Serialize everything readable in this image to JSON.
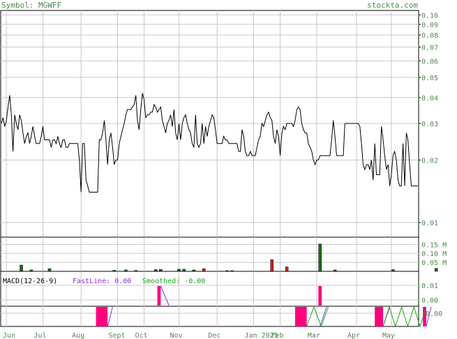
{
  "header": {
    "symbol_label": "Symbol: MGWFF",
    "site": "stockta.com"
  },
  "colors": {
    "text": "#4c8a4c",
    "grid": "#c8c8c8",
    "price_line": "#000000",
    "volume_up": "#1a6e1a",
    "volume_down": "#d02020",
    "macd_bar": "#ff007f",
    "macd_fast": "#8a2be2",
    "macd_smoothed": "#20a020"
  },
  "chart_data": [
    {
      "type": "line",
      "panel": "price",
      "y_scale": "log",
      "ylim": [
        0.0085,
        0.105
      ],
      "yticks": [
        "0.10",
        "0.09",
        "0.08",
        "0.07",
        "0.06",
        "0.05",
        "0.04",
        "0.03",
        "0.02",
        "0.01"
      ],
      "ytick_values": [
        0.1,
        0.09,
        0.08,
        0.07,
        0.06,
        0.05,
        0.04,
        0.03,
        0.02,
        0.01
      ],
      "grid": true,
      "x_labels": [
        "Jun",
        "Jul",
        "Aug",
        "Sept",
        "Oct",
        "Nov",
        "Dec",
        "Jan 2025",
        "Feb",
        "Mar",
        "Apr",
        "May"
      ],
      "x_label_index": [
        3,
        25,
        48,
        70,
        86,
        107,
        130,
        152,
        168,
        190,
        214,
        235
      ],
      "values": [
        0.03,
        0.032,
        0.029,
        0.031,
        0.036,
        0.041,
        0.033,
        0.022,
        0.033,
        0.03,
        0.028,
        0.033,
        0.031,
        0.027,
        0.024,
        0.026,
        0.027,
        0.024,
        0.026,
        0.029,
        0.026,
        0.024,
        0.024,
        0.024,
        0.026,
        0.029,
        0.025,
        0.025,
        0.025,
        0.025,
        0.023,
        0.025,
        0.025,
        0.024,
        0.026,
        0.024,
        0.023,
        0.025,
        0.025,
        0.023,
        0.023,
        0.024,
        0.024,
        0.024,
        0.024,
        0.024,
        0.024,
        0.02,
        0.014,
        0.024,
        0.024,
        0.016,
        0.015,
        0.014,
        0.014,
        0.014,
        0.014,
        0.014,
        0.014,
        0.025,
        0.025,
        0.027,
        0.031,
        0.025,
        0.019,
        0.025,
        0.027,
        0.023,
        0.019,
        0.02,
        0.02,
        0.024,
        0.026,
        0.028,
        0.03,
        0.033,
        0.035,
        0.035,
        0.035,
        0.036,
        0.037,
        0.041,
        0.031,
        0.028,
        0.035,
        0.042,
        0.039,
        0.032,
        0.033,
        0.033,
        0.034,
        0.034,
        0.037,
        0.036,
        0.034,
        0.035,
        0.036,
        0.031,
        0.029,
        0.027,
        0.03,
        0.031,
        0.033,
        0.029,
        0.035,
        0.027,
        0.025,
        0.03,
        0.025,
        0.03,
        0.032,
        0.033,
        0.03,
        0.028,
        0.027,
        0.024,
        0.023,
        0.033,
        0.024,
        0.023,
        0.024,
        0.03,
        0.024,
        0.029,
        0.026,
        0.029,
        0.031,
        0.033,
        0.032,
        0.028,
        0.024,
        0.024,
        0.024,
        0.024,
        0.026,
        0.025,
        0.025,
        0.024,
        0.024,
        0.024,
        0.024,
        0.024,
        0.024,
        0.022,
        0.022,
        0.028,
        0.026,
        0.022,
        0.021,
        0.021,
        0.022,
        0.021,
        0.021,
        0.021,
        0.023,
        0.025,
        0.026,
        0.03,
        0.029,
        0.031,
        0.033,
        0.034,
        0.032,
        0.031,
        0.026,
        0.024,
        0.028,
        0.026,
        0.021,
        0.027,
        0.029,
        0.028,
        0.03,
        0.03,
        0.03,
        0.03,
        0.029,
        0.031,
        0.035,
        0.036,
        0.035,
        0.03,
        0.028,
        0.027,
        0.027,
        0.024,
        0.023,
        0.022,
        0.02,
        0.019,
        0.02,
        0.02,
        0.021,
        0.021,
        0.021,
        0.021,
        0.021,
        0.021,
        0.021,
        0.025,
        0.031,
        0.026,
        0.021,
        0.021,
        0.021,
        0.021,
        0.021,
        0.03,
        0.03,
        0.03,
        0.03,
        0.03,
        0.03,
        0.03,
        0.03,
        0.03,
        0.029,
        0.024,
        0.019,
        0.018,
        0.019,
        0.019,
        0.018,
        0.02,
        0.016,
        0.024,
        0.017,
        0.017,
        0.017,
        0.029,
        0.025,
        0.021,
        0.018,
        0.019,
        0.015,
        0.017,
        0.021,
        0.022,
        0.02,
        0.016,
        0.015,
        0.015,
        0.024,
        0.015,
        0.027,
        0.025,
        0.019,
        0.015,
        0.015,
        0.015,
        0.015,
        0.015
      ],
      "xlabel": "",
      "ylabel": ""
    },
    {
      "type": "bar",
      "panel": "volume",
      "ylim": [
        0,
        0.19
      ],
      "yticks": [
        "0.15 M",
        "0.10 M",
        "0.05 M"
      ],
      "ytick_values": [
        0.15,
        0.1,
        0.05
      ],
      "unit": "M",
      "bars": [
        {
          "i": 12,
          "v": 0.035,
          "dir": "up"
        },
        {
          "i": 18,
          "v": 0.008,
          "dir": "up"
        },
        {
          "i": 29,
          "v": 0.015,
          "dir": "up"
        },
        {
          "i": 68,
          "v": 0.006,
          "dir": "up"
        },
        {
          "i": 75,
          "v": 0.008,
          "dir": "up"
        },
        {
          "i": 81,
          "v": 0.005,
          "dir": "up"
        },
        {
          "i": 93,
          "v": 0.01,
          "dir": "up"
        },
        {
          "i": 96,
          "v": 0.011,
          "dir": "up"
        },
        {
          "i": 107,
          "v": 0.012,
          "dir": "up"
        },
        {
          "i": 110,
          "v": 0.012,
          "dir": "up"
        },
        {
          "i": 116,
          "v": 0.008,
          "dir": "up"
        },
        {
          "i": 122,
          "v": 0.015,
          "dir": "down"
        },
        {
          "i": 136,
          "v": 0.004,
          "dir": "down"
        },
        {
          "i": 139,
          "v": 0.004,
          "dir": "down"
        },
        {
          "i": 163,
          "v": 0.065,
          "dir": "down"
        },
        {
          "i": 172,
          "v": 0.025,
          "dir": "down"
        },
        {
          "i": 192,
          "v": 0.152,
          "dir": "up"
        },
        {
          "i": 201,
          "v": 0.008,
          "dir": "up"
        },
        {
          "i": 236,
          "v": 0.01,
          "dir": "up"
        },
        {
          "i": 262,
          "v": 0.017,
          "dir": "up"
        }
      ]
    },
    {
      "type": "bar",
      "panel": "macd",
      "title": "MACD(12-26-9)",
      "fastline_label": "FastLine: 0.00",
      "smoothed_label": "Smoothed: -0.00",
      "yticks": [
        "0.01",
        "0.00",
        "-0.00"
      ],
      "upper_bars": [
        {
          "from": 94,
          "to": 96,
          "v": 1.0
        },
        {
          "from": 191,
          "to": 193,
          "v": 1.0
        }
      ],
      "upper_fast_line": [
        {
          "from": 96,
          "to": 101
        }
      ],
      "lower_bars": [
        {
          "from": 57,
          "to": 64,
          "v": 1.0
        },
        {
          "from": 177,
          "to": 184,
          "v": 1.0
        },
        {
          "from": 225,
          "to": 230,
          "v": 1.0
        },
        {
          "from": 254,
          "to": 256,
          "v": 1.0
        }
      ],
      "lower_fast_line": [
        {
          "from": 64,
          "to": 67
        },
        {
          "from": 192,
          "to": 196
        },
        {
          "from": 230,
          "to": 234
        },
        {
          "from": 256,
          "to": 259
        }
      ],
      "lower_smoothed_zigzag": [
        {
          "from": 184,
          "to": 197
        },
        {
          "from": 230,
          "to": 256
        }
      ]
    }
  ]
}
